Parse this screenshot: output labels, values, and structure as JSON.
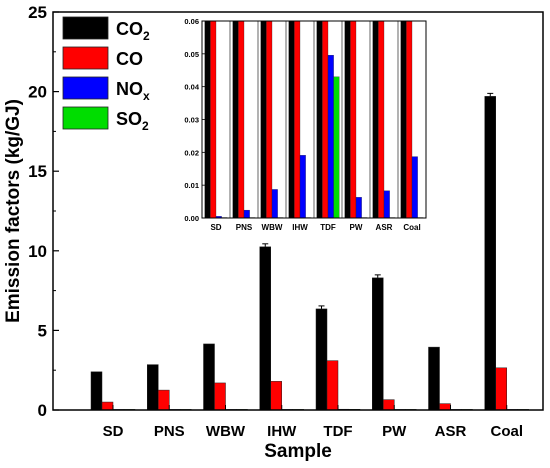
{
  "chart_data": [
    {
      "type": "bar",
      "xlabel": "Sample",
      "ylabel": "Emission factors (kg/GJ)",
      "ylim": [
        0,
        25
      ],
      "yticks": [
        0,
        5,
        10,
        15,
        20,
        25
      ],
      "categories": [
        "SD",
        "PNS",
        "WBW",
        "IHW",
        "TDF",
        "PW",
        "ASR",
        "Coal"
      ],
      "series": [
        {
          "name": "CO2",
          "name_base": "CO",
          "name_sub": "2",
          "color": "#000000",
          "values": [
            2.4,
            2.85,
            4.15,
            10.25,
            6.35,
            8.3,
            3.95,
            19.7
          ]
        },
        {
          "name": "CO",
          "name_base": "CO",
          "name_sub": "",
          "color": "#ff0000",
          "values": [
            0.5,
            1.25,
            1.7,
            1.8,
            3.1,
            0.65,
            0.4,
            2.65
          ]
        },
        {
          "name": "NOx",
          "name_base": "NO",
          "name_sub": "x",
          "color": "#0000ff",
          "values": [
            0.0005,
            0.0024,
            0.0087,
            0.0191,
            0.0496,
            0.0063,
            0.0083,
            0.0187
          ]
        },
        {
          "name": "SO2",
          "name_base": "SO",
          "name_sub": "2",
          "color": "#00dd00",
          "values": [
            0,
            0,
            0,
            0,
            0.043,
            0,
            0,
            0
          ]
        }
      ],
      "legend": "top-left",
      "grid": false
    },
    {
      "type": "bar",
      "inset": true,
      "ylim": [
        0,
        0.06
      ],
      "yticks": [
        "0.00",
        "0.01",
        "0.02",
        "0.03",
        "0.04",
        "0.05",
        "0.06"
      ],
      "categories": [
        "SD",
        "PNS",
        "WBW",
        "IHW",
        "TDF",
        "PW",
        "ASR",
        "Coal"
      ],
      "note": "CO2 and CO bars exceed the inset axis range"
    }
  ]
}
